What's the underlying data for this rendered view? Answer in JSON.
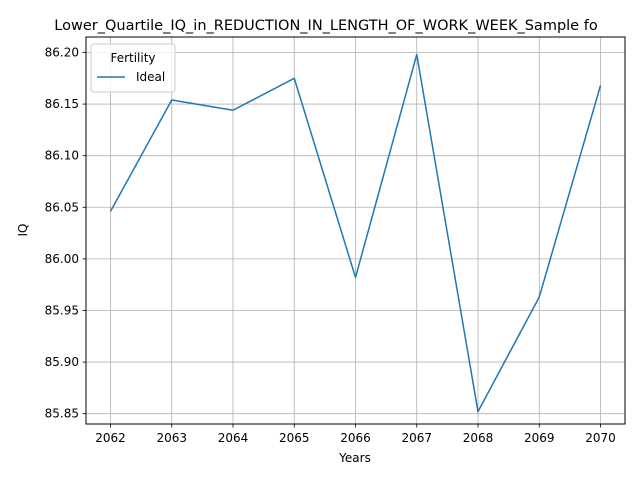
{
  "chart_data": {
    "type": "line",
    "title": "Lower_Quartile_IQ_in_REDUCTION_IN_LENGTH_OF_WORK_WEEK_Sample fo",
    "xlabel": "Years",
    "ylabel": "IQ",
    "x": [
      2062,
      2063,
      2064,
      2065,
      2066,
      2067,
      2068,
      2069,
      2070
    ],
    "x_ticks": [
      "2062",
      "2063",
      "2064",
      "2065",
      "2066",
      "2067",
      "2068",
      "2069",
      "2070"
    ],
    "y_ticks": [
      "85.85",
      "85.90",
      "85.95",
      "86.00",
      "86.05",
      "86.10",
      "86.15",
      "86.20"
    ],
    "ylim": [
      85.84,
      86.215
    ],
    "xlim": [
      2061.6,
      2070.4
    ],
    "grid": true,
    "legend": {
      "title": "Fertility",
      "placement": "top-left"
    },
    "series": [
      {
        "name": "Ideal",
        "color": "#1f77b4",
        "values": [
          86.046,
          86.154,
          86.144,
          86.175,
          85.982,
          86.198,
          85.852,
          85.963,
          86.168
        ]
      }
    ]
  }
}
